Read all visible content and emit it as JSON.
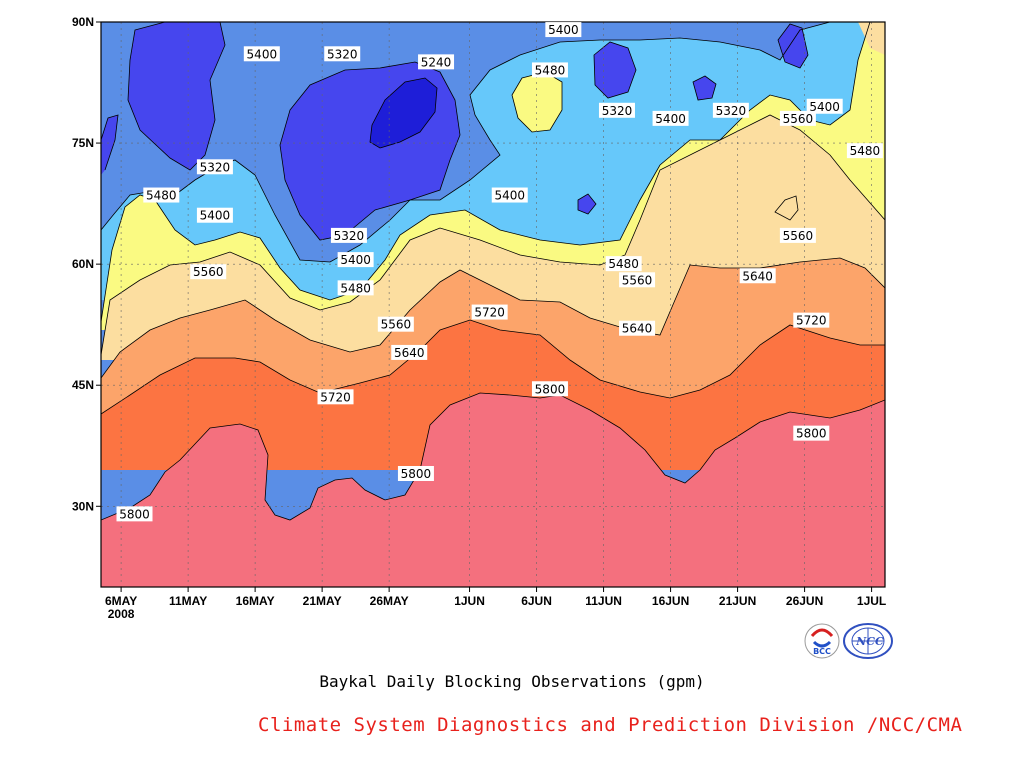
{
  "chart_data": {
    "type": "contour",
    "title": "Baykal Daily Blocking Observations (gpm)",
    "y_ticks": [
      "30N",
      "45N",
      "60N",
      "75N",
      "90N"
    ],
    "y_tick_values": [
      30,
      45,
      60,
      75,
      90
    ],
    "ylim": [
      20,
      90
    ],
    "x_ticks": [
      "6MAY\n2008",
      "11MAY",
      "16MAY",
      "21MAY",
      "26MAY",
      "1JUN",
      "6JUN",
      "11JUN",
      "16JUN",
      "21JUN",
      "26JUN",
      "1JUL"
    ],
    "x_tick_days": [
      0,
      5,
      10,
      15,
      20,
      26,
      31,
      36,
      41,
      46,
      51,
      56
    ],
    "xlim_days": [
      -1.5,
      57
    ],
    "grid": true,
    "levels": [
      5240,
      5320,
      5400,
      5480,
      5560,
      5640,
      5720,
      5800
    ],
    "level_colors": {
      "below_5240": "#1e1ed8",
      "5240_5320": "#4646ee",
      "5320_5400": "#5a8ee6",
      "5400_5480": "#66c8fa",
      "5480_5560": "#fafa82",
      "5560_5640": "#fcdea0",
      "5640_5720": "#fca46a",
      "5720_5800": "#fc7442",
      "above_5800": "#f4707e"
    },
    "approx_contour_latitudes_by_day": {
      "5800": [
        {
          "day": 0,
          "lat": 28
        },
        {
          "day": 10,
          "lat": 41
        },
        {
          "day": 15,
          "lat": 28
        },
        {
          "day": 20,
          "lat": 34
        },
        {
          "day": 26,
          "lat": 44
        },
        {
          "day": 31,
          "lat": 44
        },
        {
          "day": 41,
          "lat": 33
        },
        {
          "day": 51,
          "lat": 41
        },
        {
          "day": 56,
          "lat": 43
        }
      ],
      "5720": [
        {
          "day": 0,
          "lat": 41
        },
        {
          "day": 10,
          "lat": 48
        },
        {
          "day": 15,
          "lat": 44
        },
        {
          "day": 20,
          "lat": 46
        },
        {
          "day": 26,
          "lat": 53
        },
        {
          "day": 31,
          "lat": 51
        },
        {
          "day": 41,
          "lat": 43
        },
        {
          "day": 51,
          "lat": 52
        },
        {
          "day": 56,
          "lat": 50
        }
      ],
      "5640": [
        {
          "day": 0,
          "lat": 46
        },
        {
          "day": 10,
          "lat": 56
        },
        {
          "day": 15,
          "lat": 51
        },
        {
          "day": 20,
          "lat": 49
        },
        {
          "day": 26,
          "lat": 59
        },
        {
          "day": 31,
          "lat": 55
        },
        {
          "day": 41,
          "lat": 52
        },
        {
          "day": 46,
          "lat": 61
        },
        {
          "day": 51,
          "lat": 61
        },
        {
          "day": 56,
          "lat": 57
        }
      ],
      "5560": [
        {
          "day": 0,
          "lat": 49
        },
        {
          "day": 10,
          "lat": 60
        },
        {
          "day": 15,
          "lat": 54
        },
        {
          "day": 20,
          "lat": 58
        },
        {
          "day": 26,
          "lat": 63
        },
        {
          "day": 36,
          "lat": 58
        },
        {
          "day": 41,
          "lat": 71
        },
        {
          "day": 46,
          "lat": 74
        },
        {
          "day": 51,
          "lat": 81
        },
        {
          "day": 56,
          "lat": 60
        }
      ],
      "5480": [
        {
          "day": 0,
          "lat": 53
        },
        {
          "day": 5,
          "lat": 68
        },
        {
          "day": 10,
          "lat": 65
        },
        {
          "day": 15,
          "lat": 56
        },
        {
          "day": 20,
          "lat": 63
        },
        {
          "day": 26,
          "lat": 64
        },
        {
          "day": 36,
          "lat": 61
        },
        {
          "day": 41,
          "lat": 75
        },
        {
          "day": 51,
          "lat": 77
        },
        {
          "day": 56,
          "lat": 87
        }
      ],
      "5400": [
        {
          "day": 0,
          "lat": 58
        },
        {
          "day": 5,
          "lat": 68
        },
        {
          "day": 10,
          "lat": 70
        },
        {
          "day": 15,
          "lat": 59
        },
        {
          "day": 20,
          "lat": 68
        },
        {
          "day": 26,
          "lat": 70
        },
        {
          "day": 31,
          "lat": 84
        },
        {
          "day": 41,
          "lat": 78
        },
        {
          "day": 51,
          "lat": 80
        },
        {
          "day": 56,
          "lat": 90
        }
      ]
    },
    "contour_labels": [
      {
        "text": "5400",
        "day": 10.5,
        "lat": 86
      },
      {
        "text": "5320",
        "day": 16.5,
        "lat": 86
      },
      {
        "text": "5240",
        "day": 23.5,
        "lat": 85
      },
      {
        "text": "5400",
        "day": 33,
        "lat": 89
      },
      {
        "text": "5480",
        "day": 32,
        "lat": 84
      },
      {
        "text": "5320",
        "day": 37,
        "lat": 79
      },
      {
        "text": "5400",
        "day": 41,
        "lat": 78
      },
      {
        "text": "5320",
        "day": 45.5,
        "lat": 79
      },
      {
        "text": "5400",
        "day": 52.5,
        "lat": 79.5
      },
      {
        "text": "5560",
        "day": 50.5,
        "lat": 78
      },
      {
        "text": "5480",
        "day": 55.5,
        "lat": 74
      },
      {
        "text": "5320",
        "day": 7,
        "lat": 72
      },
      {
        "text": "5480",
        "day": 3,
        "lat": 68.5
      },
      {
        "text": "5400",
        "day": 7,
        "lat": 66
      },
      {
        "text": "5400",
        "day": 29,
        "lat": 68.5
      },
      {
        "text": "5320",
        "day": 17,
        "lat": 63.5
      },
      {
        "text": "5560",
        "day": 50.5,
        "lat": 63.5
      },
      {
        "text": "5400",
        "day": 17.5,
        "lat": 60.5
      },
      {
        "text": "5480",
        "day": 37.5,
        "lat": 60
      },
      {
        "text": "5560",
        "day": 6.5,
        "lat": 59
      },
      {
        "text": "5640",
        "day": 47.5,
        "lat": 58.5
      },
      {
        "text": "5480",
        "day": 17.5,
        "lat": 57
      },
      {
        "text": "5560",
        "day": 38.5,
        "lat": 58
      },
      {
        "text": "5560",
        "day": 20.5,
        "lat": 52.5
      },
      {
        "text": "5720",
        "day": 27.5,
        "lat": 54
      },
      {
        "text": "5720",
        "day": 51.5,
        "lat": 53
      },
      {
        "text": "5640",
        "day": 38.5,
        "lat": 52
      },
      {
        "text": "5640",
        "day": 21.5,
        "lat": 49
      },
      {
        "text": "5720",
        "day": 16,
        "lat": 43.5
      },
      {
        "text": "5800",
        "day": 32,
        "lat": 44.5
      },
      {
        "text": "5800",
        "day": 51.5,
        "lat": 39
      },
      {
        "text": "5800",
        "day": 22,
        "lat": 34
      },
      {
        "text": "5800",
        "day": 1,
        "lat": 29
      }
    ]
  },
  "footer": {
    "title": "Baykal Daily Blocking Observations (gpm)",
    "credit": "Climate System Diagnostics and Prediction Division /NCC/CMA"
  },
  "logos": {
    "left_text": "BCC",
    "right_text": "NCC"
  }
}
